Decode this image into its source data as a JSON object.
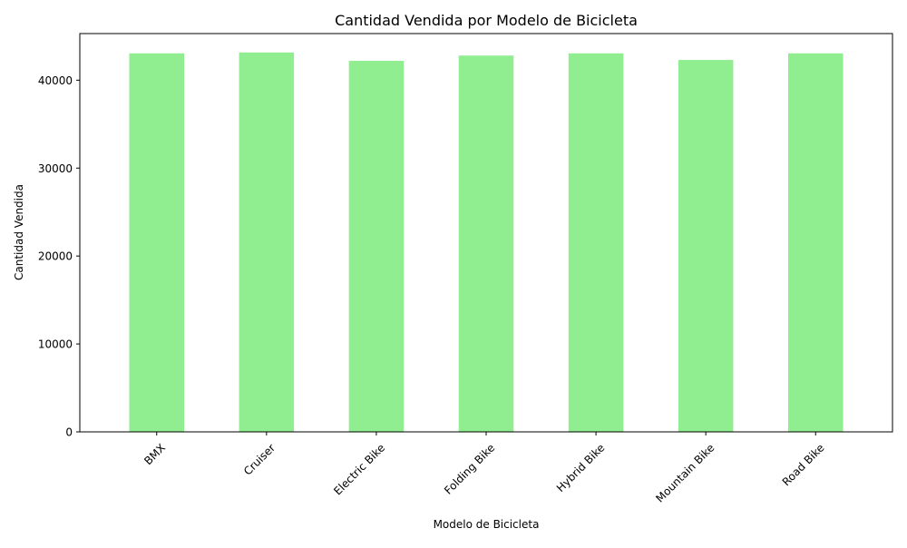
{
  "chart_data": {
    "type": "bar",
    "title": "Cantidad Vendida por Modelo de Bicicleta",
    "xlabel": "Modelo de Bicicleta",
    "ylabel": "Cantidad Vendida",
    "categories": [
      "BMX",
      "Cruiser",
      "Electric Bike",
      "Folding Bike",
      "Hybrid Bike",
      "Mountain Bike",
      "Road Bike"
    ],
    "values": [
      43050,
      43150,
      42200,
      42800,
      43050,
      42300,
      43050
    ],
    "ylim": [
      0,
      45300
    ],
    "yticks": [
      0,
      10000,
      20000,
      30000,
      40000
    ],
    "bar_color": "#90ee90",
    "grid": false,
    "legend": "none",
    "xtick_rotation_deg": 45
  }
}
